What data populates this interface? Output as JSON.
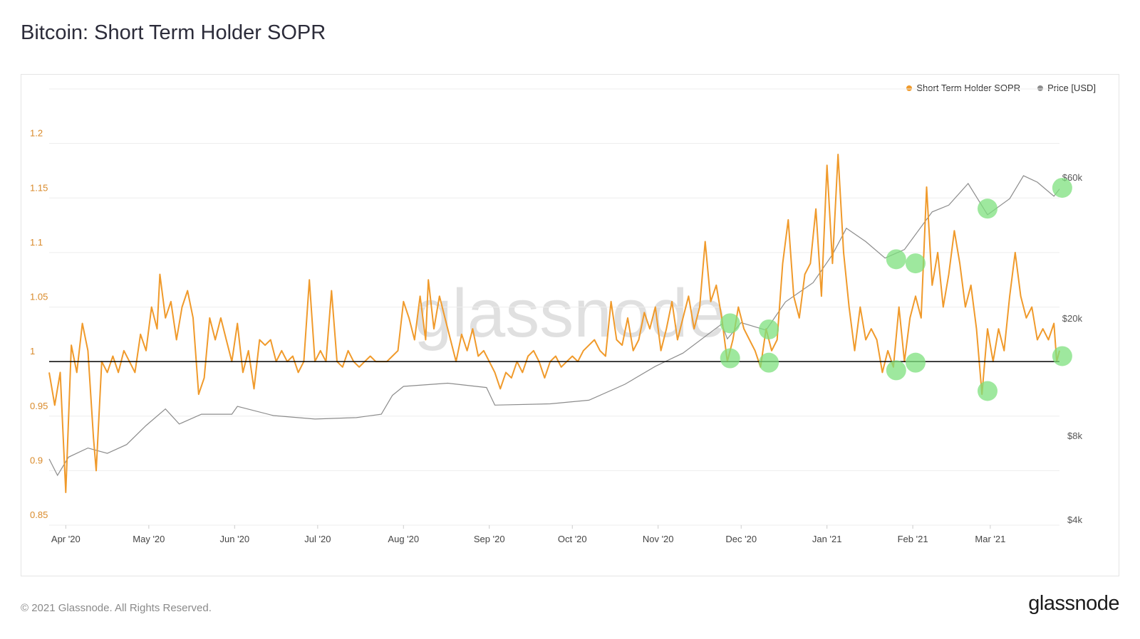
{
  "page": {
    "title": "Bitcoin: Short Term Holder SOPR",
    "footer": "© 2021 Glassnode. All Rights Reserved.",
    "brand": "glassnode",
    "watermark": "glassnode"
  },
  "colors": {
    "sopr": "#f09a2b",
    "price": "#8c8c8c",
    "baseline": "#000000",
    "highlight": "#7ee07e",
    "grid": "#ededed",
    "left_tick": "#d98a2a",
    "right_tick": "#555555"
  },
  "chart_data": {
    "type": "line",
    "title": "Bitcoin: Short Term Holder SOPR",
    "legend": [
      {
        "name": "Short Term Holder SOPR",
        "color": "#f09a2b"
      },
      {
        "name": "Price [USD]",
        "color": "#8c8c8c"
      }
    ],
    "legend_position": "top-right",
    "x_start": "2020-03-26",
    "x_end": "2021-03-26",
    "x_ticks": [
      {
        "label": "Apr '20",
        "date": "2020-04-01"
      },
      {
        "label": "May '20",
        "date": "2020-05-01"
      },
      {
        "label": "Jun '20",
        "date": "2020-06-01"
      },
      {
        "label": "Jul '20",
        "date": "2020-07-01"
      },
      {
        "label": "Aug '20",
        "date": "2020-08-01"
      },
      {
        "label": "Sep '20",
        "date": "2020-09-01"
      },
      {
        "label": "Oct '20",
        "date": "2020-10-01"
      },
      {
        "label": "Nov '20",
        "date": "2020-11-01"
      },
      {
        "label": "Dec '20",
        "date": "2020-12-01"
      },
      {
        "label": "Jan '21",
        "date": "2021-01-01"
      },
      {
        "label": "Feb '21",
        "date": "2021-02-01"
      },
      {
        "label": "Mar '21",
        "date": "2021-03-01"
      }
    ],
    "y_left": {
      "min": 0.85,
      "max": 1.25,
      "ticks": [
        "0.85",
        "0.9",
        "0.95",
        "1",
        "1.05",
        "1.1",
        "1.15",
        "1.2"
      ],
      "scale": "linear"
    },
    "y_right": {
      "scale": "log",
      "min": 4000,
      "max": 120000,
      "ticks": [
        {
          "label": "$4k",
          "value": 4000
        },
        {
          "label": "$8k",
          "value": 8000
        },
        {
          "label": "$20k",
          "value": 20000
        },
        {
          "label": "$60k",
          "value": 60000
        }
      ]
    },
    "baseline": 1.0,
    "grid": true,
    "series": [
      {
        "name": "Short Term Holder SOPR",
        "axis": "left",
        "points": [
          [
            "2020-03-26",
            0.99
          ],
          [
            "2020-03-28",
            0.96
          ],
          [
            "2020-03-30",
            0.99
          ],
          [
            "2020-04-01",
            0.88
          ],
          [
            "2020-04-03",
            1.015
          ],
          [
            "2020-04-05",
            0.99
          ],
          [
            "2020-04-07",
            1.035
          ],
          [
            "2020-04-09",
            1.01
          ],
          [
            "2020-04-11",
            0.93
          ],
          [
            "2020-04-12",
            0.9
          ],
          [
            "2020-04-14",
            1.0
          ],
          [
            "2020-04-16",
            0.99
          ],
          [
            "2020-04-18",
            1.005
          ],
          [
            "2020-04-20",
            0.99
          ],
          [
            "2020-04-22",
            1.01
          ],
          [
            "2020-04-24",
            1.0
          ],
          [
            "2020-04-26",
            0.99
          ],
          [
            "2020-04-28",
            1.025
          ],
          [
            "2020-04-30",
            1.01
          ],
          [
            "2020-05-02",
            1.05
          ],
          [
            "2020-05-04",
            1.03
          ],
          [
            "2020-05-05",
            1.08
          ],
          [
            "2020-05-07",
            1.04
          ],
          [
            "2020-05-09",
            1.055
          ],
          [
            "2020-05-11",
            1.02
          ],
          [
            "2020-05-13",
            1.05
          ],
          [
            "2020-05-15",
            1.065
          ],
          [
            "2020-05-17",
            1.04
          ],
          [
            "2020-05-19",
            0.97
          ],
          [
            "2020-05-21",
            0.985
          ],
          [
            "2020-05-23",
            1.04
          ],
          [
            "2020-05-25",
            1.02
          ],
          [
            "2020-05-27",
            1.04
          ],
          [
            "2020-05-29",
            1.02
          ],
          [
            "2020-05-31",
            1.0
          ],
          [
            "2020-06-02",
            1.035
          ],
          [
            "2020-06-04",
            0.99
          ],
          [
            "2020-06-06",
            1.01
          ],
          [
            "2020-06-08",
            0.975
          ],
          [
            "2020-06-10",
            1.02
          ],
          [
            "2020-06-12",
            1.015
          ],
          [
            "2020-06-14",
            1.02
          ],
          [
            "2020-06-16",
            1.0
          ],
          [
            "2020-06-18",
            1.01
          ],
          [
            "2020-06-20",
            1.0
          ],
          [
            "2020-06-22",
            1.005
          ],
          [
            "2020-06-24",
            0.99
          ],
          [
            "2020-06-26",
            1.0
          ],
          [
            "2020-06-28",
            1.075
          ],
          [
            "2020-06-30",
            1.0
          ],
          [
            "2020-07-02",
            1.01
          ],
          [
            "2020-07-04",
            1.0
          ],
          [
            "2020-07-06",
            1.065
          ],
          [
            "2020-07-08",
            1.0
          ],
          [
            "2020-07-10",
            0.995
          ],
          [
            "2020-07-12",
            1.01
          ],
          [
            "2020-07-14",
            1.0
          ],
          [
            "2020-07-16",
            0.995
          ],
          [
            "2020-07-18",
            1.0
          ],
          [
            "2020-07-20",
            1.005
          ],
          [
            "2020-07-22",
            1.0
          ],
          [
            "2020-07-24",
            1.0
          ],
          [
            "2020-07-26",
            1.0
          ],
          [
            "2020-07-28",
            1.005
          ],
          [
            "2020-07-30",
            1.01
          ],
          [
            "2020-08-01",
            1.055
          ],
          [
            "2020-08-03",
            1.04
          ],
          [
            "2020-08-05",
            1.02
          ],
          [
            "2020-08-07",
            1.06
          ],
          [
            "2020-08-09",
            1.02
          ],
          [
            "2020-08-10",
            1.075
          ],
          [
            "2020-08-12",
            1.03
          ],
          [
            "2020-08-14",
            1.06
          ],
          [
            "2020-08-16",
            1.04
          ],
          [
            "2020-08-18",
            1.02
          ],
          [
            "2020-08-20",
            1.0
          ],
          [
            "2020-08-22",
            1.025
          ],
          [
            "2020-08-24",
            1.01
          ],
          [
            "2020-08-26",
            1.03
          ],
          [
            "2020-08-28",
            1.005
          ],
          [
            "2020-08-30",
            1.01
          ],
          [
            "2020-09-01",
            1.0
          ],
          [
            "2020-09-03",
            0.99
          ],
          [
            "2020-09-05",
            0.975
          ],
          [
            "2020-09-07",
            0.99
          ],
          [
            "2020-09-09",
            0.985
          ],
          [
            "2020-09-11",
            1.0
          ],
          [
            "2020-09-13",
            0.99
          ],
          [
            "2020-09-15",
            1.005
          ],
          [
            "2020-09-17",
            1.01
          ],
          [
            "2020-09-19",
            1.0
          ],
          [
            "2020-09-21",
            0.985
          ],
          [
            "2020-09-23",
            1.0
          ],
          [
            "2020-09-25",
            1.005
          ],
          [
            "2020-09-27",
            0.995
          ],
          [
            "2020-09-29",
            1.0
          ],
          [
            "2020-10-01",
            1.005
          ],
          [
            "2020-10-03",
            1.0
          ],
          [
            "2020-10-05",
            1.01
          ],
          [
            "2020-10-07",
            1.015
          ],
          [
            "2020-10-09",
            1.02
          ],
          [
            "2020-10-11",
            1.01
          ],
          [
            "2020-10-13",
            1.005
          ],
          [
            "2020-10-15",
            1.055
          ],
          [
            "2020-10-17",
            1.02
          ],
          [
            "2020-10-19",
            1.015
          ],
          [
            "2020-10-21",
            1.04
          ],
          [
            "2020-10-23",
            1.01
          ],
          [
            "2020-10-25",
            1.02
          ],
          [
            "2020-10-27",
            1.045
          ],
          [
            "2020-10-29",
            1.03
          ],
          [
            "2020-10-31",
            1.05
          ],
          [
            "2020-11-02",
            1.01
          ],
          [
            "2020-11-04",
            1.03
          ],
          [
            "2020-11-06",
            1.055
          ],
          [
            "2020-11-08",
            1.02
          ],
          [
            "2020-11-10",
            1.04
          ],
          [
            "2020-11-12",
            1.06
          ],
          [
            "2020-11-14",
            1.03
          ],
          [
            "2020-11-16",
            1.05
          ],
          [
            "2020-11-18",
            1.11
          ],
          [
            "2020-11-20",
            1.055
          ],
          [
            "2020-11-22",
            1.07
          ],
          [
            "2020-11-24",
            1.04
          ],
          [
            "2020-11-26",
            1.0
          ],
          [
            "2020-11-28",
            1.02
          ],
          [
            "2020-11-30",
            1.05
          ],
          [
            "2020-12-02",
            1.03
          ],
          [
            "2020-12-04",
            1.02
          ],
          [
            "2020-12-06",
            1.01
          ],
          [
            "2020-12-08",
            0.995
          ],
          [
            "2020-12-10",
            1.03
          ],
          [
            "2020-12-12",
            1.01
          ],
          [
            "2020-12-14",
            1.02
          ],
          [
            "2020-12-16",
            1.09
          ],
          [
            "2020-12-18",
            1.13
          ],
          [
            "2020-12-20",
            1.06
          ],
          [
            "2020-12-22",
            1.04
          ],
          [
            "2020-12-24",
            1.08
          ],
          [
            "2020-12-26",
            1.09
          ],
          [
            "2020-12-28",
            1.14
          ],
          [
            "2020-12-30",
            1.06
          ],
          [
            "2021-01-01",
            1.18
          ],
          [
            "2021-01-03",
            1.09
          ],
          [
            "2021-01-05",
            1.19
          ],
          [
            "2021-01-07",
            1.1
          ],
          [
            "2021-01-09",
            1.05
          ],
          [
            "2021-01-11",
            1.01
          ],
          [
            "2021-01-13",
            1.05
          ],
          [
            "2021-01-15",
            1.02
          ],
          [
            "2021-01-17",
            1.03
          ],
          [
            "2021-01-19",
            1.02
          ],
          [
            "2021-01-21",
            0.99
          ],
          [
            "2021-01-23",
            1.01
          ],
          [
            "2021-01-25",
            0.995
          ],
          [
            "2021-01-27",
            1.05
          ],
          [
            "2021-01-29",
            1.0
          ],
          [
            "2021-01-31",
            1.04
          ],
          [
            "2021-02-02",
            1.06
          ],
          [
            "2021-02-04",
            1.04
          ],
          [
            "2021-02-06",
            1.16
          ],
          [
            "2021-02-08",
            1.07
          ],
          [
            "2021-02-10",
            1.1
          ],
          [
            "2021-02-12",
            1.05
          ],
          [
            "2021-02-14",
            1.08
          ],
          [
            "2021-02-16",
            1.12
          ],
          [
            "2021-02-18",
            1.09
          ],
          [
            "2021-02-20",
            1.05
          ],
          [
            "2021-02-22",
            1.07
          ],
          [
            "2021-02-24",
            1.03
          ],
          [
            "2021-02-26",
            0.97
          ],
          [
            "2021-02-28",
            1.03
          ],
          [
            "2021-03-02",
            1.0
          ],
          [
            "2021-03-04",
            1.03
          ],
          [
            "2021-03-06",
            1.01
          ],
          [
            "2021-03-08",
            1.06
          ],
          [
            "2021-03-10",
            1.1
          ],
          [
            "2021-03-12",
            1.06
          ],
          [
            "2021-03-14",
            1.04
          ],
          [
            "2021-03-16",
            1.05
          ],
          [
            "2021-03-18",
            1.02
          ],
          [
            "2021-03-20",
            1.03
          ],
          [
            "2021-03-22",
            1.02
          ],
          [
            "2021-03-24",
            1.035
          ],
          [
            "2021-03-25",
            1.0
          ],
          [
            "2021-03-26",
            1.01
          ]
        ]
      },
      {
        "name": "Price [USD]",
        "axis": "right",
        "points": [
          [
            "2020-03-26",
            6700
          ],
          [
            "2020-03-29",
            5900
          ],
          [
            "2020-04-02",
            6800
          ],
          [
            "2020-04-09",
            7300
          ],
          [
            "2020-04-16",
            7000
          ],
          [
            "2020-04-23",
            7500
          ],
          [
            "2020-04-30",
            8700
          ],
          [
            "2020-05-07",
            9900
          ],
          [
            "2020-05-12",
            8800
          ],
          [
            "2020-05-20",
            9500
          ],
          [
            "2020-05-31",
            9500
          ],
          [
            "2020-06-02",
            10100
          ],
          [
            "2020-06-15",
            9400
          ],
          [
            "2020-06-30",
            9150
          ],
          [
            "2020-07-15",
            9250
          ],
          [
            "2020-07-24",
            9500
          ],
          [
            "2020-07-28",
            11000
          ],
          [
            "2020-08-01",
            11800
          ],
          [
            "2020-08-17",
            12100
          ],
          [
            "2020-08-31",
            11700
          ],
          [
            "2020-09-03",
            10200
          ],
          [
            "2020-09-23",
            10300
          ],
          [
            "2020-10-07",
            10600
          ],
          [
            "2020-10-20",
            12000
          ],
          [
            "2020-10-31",
            13800
          ],
          [
            "2020-11-10",
            15300
          ],
          [
            "2020-11-24",
            19200
          ],
          [
            "2020-11-26",
            17100
          ],
          [
            "2020-12-01",
            19400
          ],
          [
            "2020-12-10",
            18300
          ],
          [
            "2020-12-17",
            22800
          ],
          [
            "2020-12-27",
            26500
          ],
          [
            "2021-01-03",
            33000
          ],
          [
            "2021-01-08",
            40500
          ],
          [
            "2021-01-15",
            36500
          ],
          [
            "2021-01-22",
            32100
          ],
          [
            "2021-01-29",
            34300
          ],
          [
            "2021-02-08",
            46000
          ],
          [
            "2021-02-14",
            48500
          ],
          [
            "2021-02-21",
            57400
          ],
          [
            "2021-02-28",
            45000
          ],
          [
            "2021-03-08",
            51000
          ],
          [
            "2021-03-13",
            61000
          ],
          [
            "2021-03-18",
            58000
          ],
          [
            "2021-03-24",
            52000
          ],
          [
            "2021-03-26",
            55000
          ]
        ]
      }
    ],
    "highlights_sopr": [
      [
        "2020-11-27",
        1.003
      ],
      [
        "2020-12-11",
        0.999
      ],
      [
        "2021-01-26",
        0.992
      ],
      [
        "2021-02-02",
        0.999
      ],
      [
        "2021-02-28",
        0.973
      ],
      [
        "2021-03-27",
        1.005
      ]
    ],
    "highlights_price": [
      [
        "2020-11-27",
        19300
      ],
      [
        "2020-12-11",
        18400
      ],
      [
        "2021-01-26",
        31800
      ],
      [
        "2021-02-02",
        30800
      ],
      [
        "2021-02-28",
        47200
      ],
      [
        "2021-03-27",
        55500
      ]
    ]
  }
}
